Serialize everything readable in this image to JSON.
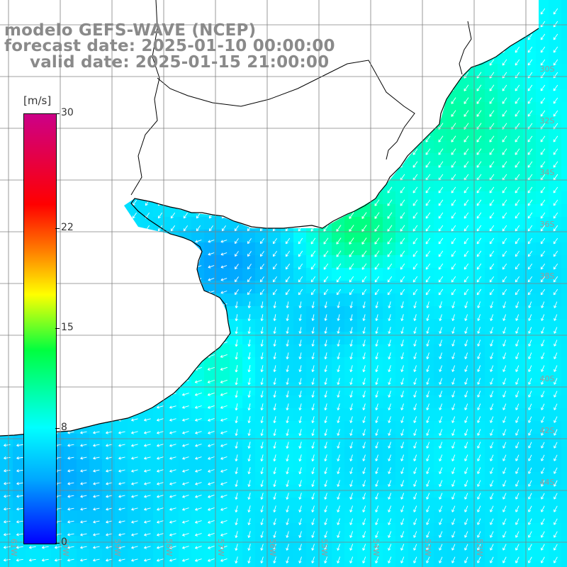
{
  "header": {
    "model": "modelo GEFS-WAVE (NCEP)",
    "forecast": "forecast date: 2025-01-10 00:00:00",
    "valid": "valid date: 2025-01-15 21:00:00"
  },
  "colorbar": {
    "unit": "[m/s]",
    "ticks": [
      "30",
      "22",
      "15",
      "8",
      "0"
    ],
    "tick_values": [
      30,
      22,
      15,
      8,
      0
    ],
    "min": 0,
    "max": 30
  },
  "map": {
    "lat_labels": [
      "30S",
      "32S",
      "34S",
      "36S",
      "38S",
      "40S",
      "42S",
      "44S"
    ],
    "lon_labels": [
      "61W",
      "60W",
      "59W",
      "58W",
      "57W",
      "56W",
      "55W",
      "54W",
      "53W",
      "52W"
    ],
    "land_color": "#ffffff",
    "coast_color": "#000000",
    "grid_color": "#808080",
    "arrow_color": "#ffffff"
  }
}
